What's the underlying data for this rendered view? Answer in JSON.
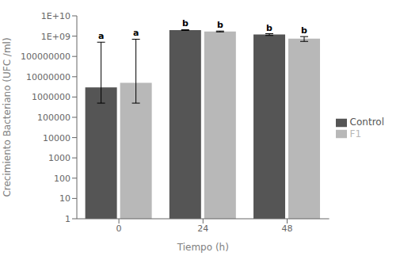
{
  "chart_data": {
    "type": "bar",
    "categories": [
      "0",
      "24",
      "48"
    ],
    "series": [
      {
        "name": "Control",
        "color": "#555555",
        "values": [
          3000000,
          2000000000,
          1200000000
        ],
        "error_lower": [
          2500000,
          80000000,
          120000000
        ],
        "error_upper": [
          500000000,
          80000000,
          120000000
        ],
        "annotations": [
          "a",
          "b",
          "b"
        ]
      },
      {
        "name": "F1",
        "color": "#b8b8b8",
        "values": [
          5000000,
          1700000000,
          750000000
        ],
        "error_lower": [
          4500000,
          80000000,
          200000000
        ],
        "error_upper": [
          700000000,
          80000000,
          200000000
        ],
        "annotations": [
          "a",
          "b",
          "b"
        ]
      }
    ],
    "xlabel": "Tiempo (h)",
    "ylabel": "Crecimiento Bacteriano (UFC /ml)",
    "log": "y",
    "ylim": [
      1,
      10000000000
    ],
    "yticks": [
      1,
      10,
      100,
      1000,
      10000,
      100000,
      1000000,
      10000000,
      100000000,
      {
        "value": 1000000000,
        "label": "1E+09"
      },
      {
        "value": 10000000000,
        "label": "1E+10"
      }
    ],
    "grid": false,
    "legend": "right"
  }
}
